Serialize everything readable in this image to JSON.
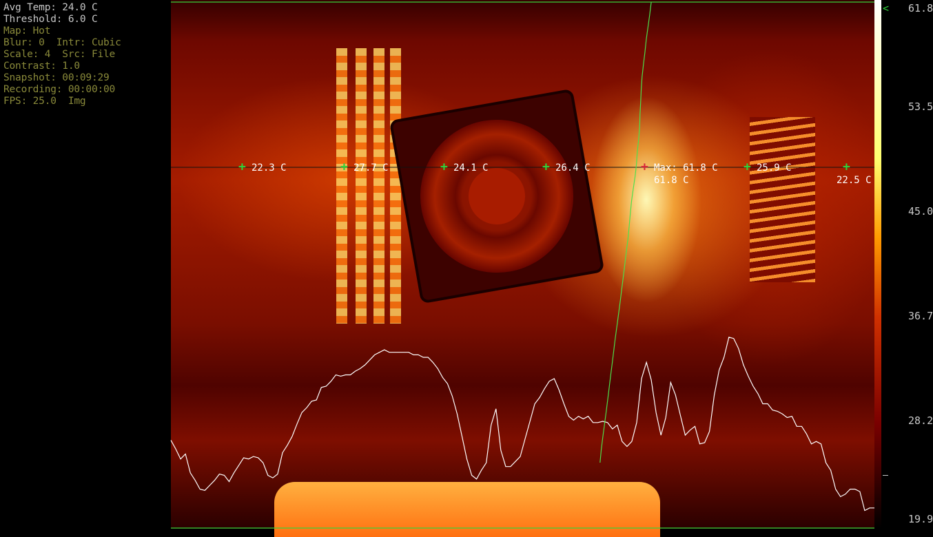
{
  "info": {
    "avg_temp": "Avg Temp: 24.0 C",
    "threshold": "Threshold: 6.0 C",
    "map": "Map: Hot",
    "blur": "Blur: 0  Intr: Cubic",
    "scale": "Scale: 4  Src: File",
    "contrast": "Contrast: 1.0",
    "snapshot": "Snapshot: 00:09:29",
    "recording": "Recording: 00:00:00",
    "fps": "FPS: 25.0  Img"
  },
  "probes": [
    {
      "label": "22.3 C"
    },
    {
      "label": "27.7 C"
    },
    {
      "label": "24.1 C"
    },
    {
      "label": "26.4 C"
    },
    {
      "label": "Max: 61.8 C"
    },
    {
      "label": "25.9 C"
    },
    {
      "label": "22.5 C"
    }
  ],
  "max_probe_value": "61.8 C",
  "color_scale": {
    "colormap": "hot",
    "ticks": [
      "61.8",
      "53.5",
      "45.0",
      "36.7",
      "28.2",
      "19.9"
    ],
    "pointer": "<",
    "min": 19.9,
    "max": 61.8
  },
  "profiles": {
    "horizontal": [
      26.9,
      26.2,
      25.4,
      25.8,
      24.3,
      23.7,
      23.0,
      22.9,
      23.3,
      23.7,
      24.2,
      24.1,
      23.6,
      24.3,
      24.9,
      25.5,
      25.4,
      25.6,
      25.5,
      25.1,
      24.1,
      23.9,
      24.2,
      25.9,
      26.5,
      27.2,
      28.2,
      29.1,
      29.5,
      30.0,
      30.1,
      31.1,
      31.2,
      31.6,
      32.1,
      32.0,
      32.1,
      32.1,
      32.4,
      32.6,
      32.9,
      33.3,
      33.7,
      33.9,
      34.1,
      33.9,
      33.9,
      33.9,
      33.9,
      33.9,
      33.7,
      33.7,
      33.5,
      33.5,
      33.1,
      32.6,
      31.9,
      31.4,
      30.4,
      29.0,
      27.2,
      25.4,
      24.1,
      23.8,
      24.5,
      25.1,
      28.1,
      29.4,
      26.1,
      24.8,
      24.8,
      25.2,
      25.6,
      27.0,
      28.4,
      29.8,
      30.3,
      31.0,
      31.6,
      31.8,
      30.9,
      29.8,
      28.8,
      28.5,
      28.8,
      28.6,
      28.8,
      28.3,
      28.3,
      28.4,
      28.3,
      27.8,
      28.1,
      26.8,
      26.4,
      26.8,
      28.3,
      31.8,
      33.1,
      31.7,
      29.1,
      27.3,
      28.7,
      31.5,
      30.5,
      28.9,
      27.3,
      27.7,
      28.0,
      26.6,
      26.7,
      27.6,
      30.5,
      32.5,
      33.5,
      35.1,
      35.0,
      34.2,
      32.9,
      32.0,
      31.2,
      30.6,
      29.8,
      29.8,
      29.3,
      29.2,
      29.0,
      28.7,
      28.8,
      28.0,
      28.0,
      27.4,
      26.6,
      26.8,
      26.6,
      25.1,
      24.5,
      23.0,
      22.4,
      22.6,
      23.0,
      23.0,
      22.8,
      21.3,
      21.5,
      21.5
    ],
    "vertical": [
      61.8,
      60.9,
      59.9,
      58.9,
      58.1,
      57.2,
      56.4,
      55.9,
      55.6,
      55.2,
      55.0,
      54.4,
      53.6,
      53.1,
      52.3,
      51.2,
      50.2,
      49.3,
      48.4,
      47.5,
      46.3,
      45.1,
      43.9,
      42.7,
      41.5,
      40.2,
      38.9,
      37.6,
      36.4,
      35.2,
      34.0,
      32.8,
      31.6,
      30.4,
      29.1,
      27.8,
      26.6,
      25.7
    ]
  }
}
